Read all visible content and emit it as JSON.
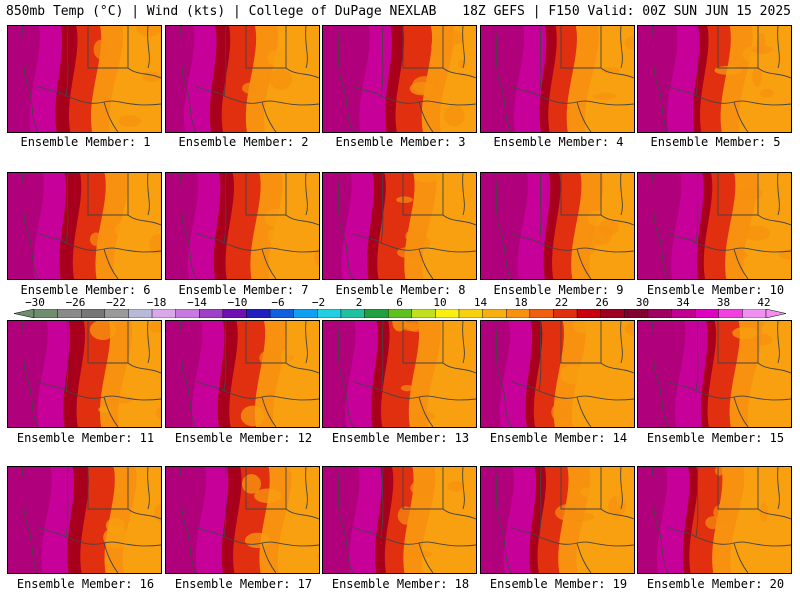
{
  "header": {
    "left": "850mb Temp (°C) | Wind (kts) | College of DuPage NEXLAB",
    "right": "18Z GEFS | F150 Valid: 00Z SUN JUN 15 2025"
  },
  "members": [
    {
      "label": "Ensemble Member: 1"
    },
    {
      "label": "Ensemble Member: 2"
    },
    {
      "label": "Ensemble Member: 3"
    },
    {
      "label": "Ensemble Member: 4"
    },
    {
      "label": "Ensemble Member: 5"
    },
    {
      "label": "Ensemble Member: 6"
    },
    {
      "label": "Ensemble Member: 7"
    },
    {
      "label": "Ensemble Member: 8"
    },
    {
      "label": "Ensemble Member: 9"
    },
    {
      "label": "Ensemble Member: 10"
    },
    {
      "label": "Ensemble Member: 11"
    },
    {
      "label": "Ensemble Member: 12"
    },
    {
      "label": "Ensemble Member: 13"
    },
    {
      "label": "Ensemble Member: 14"
    },
    {
      "label": "Ensemble Member: 15"
    },
    {
      "label": "Ensemble Member: 16"
    },
    {
      "label": "Ensemble Member: 17"
    },
    {
      "label": "Ensemble Member: 18"
    },
    {
      "label": "Ensemble Member: 19"
    },
    {
      "label": "Ensemble Member: 20"
    }
  ],
  "colorbar": {
    "ticks": [
      "−30",
      "−26",
      "−22",
      "−18",
      "−14",
      "−10",
      "−6",
      "−2",
      "2",
      "6",
      "10",
      "14",
      "18",
      "22",
      "26",
      "30",
      "34",
      "38",
      "42"
    ],
    "colors": [
      "#6e8e6e",
      "#8a8a8a",
      "#777777",
      "#9a9a9a",
      "#b8b8d8",
      "#d8a8e8",
      "#c878e0",
      "#a040c8",
      "#7010b0",
      "#2020c0",
      "#1060e0",
      "#10a0f0",
      "#20d0e0",
      "#20c0a0",
      "#20a040",
      "#60c020",
      "#c0e020",
      "#f8f010",
      "#f8d010",
      "#f8b010",
      "#f89010",
      "#f06010",
      "#e03010",
      "#c80010",
      "#a00020",
      "#800030",
      "#a00060",
      "#c00090",
      "#e000c0",
      "#f040e0",
      "#f090f0"
    ]
  },
  "map_colors": {
    "far_west": "#b0007c",
    "west": "#c8009a",
    "hot_band": "#a8001c",
    "mid": "#e03010",
    "orange": "#f89010",
    "east": "#f8a010",
    "lines": "#444444"
  }
}
